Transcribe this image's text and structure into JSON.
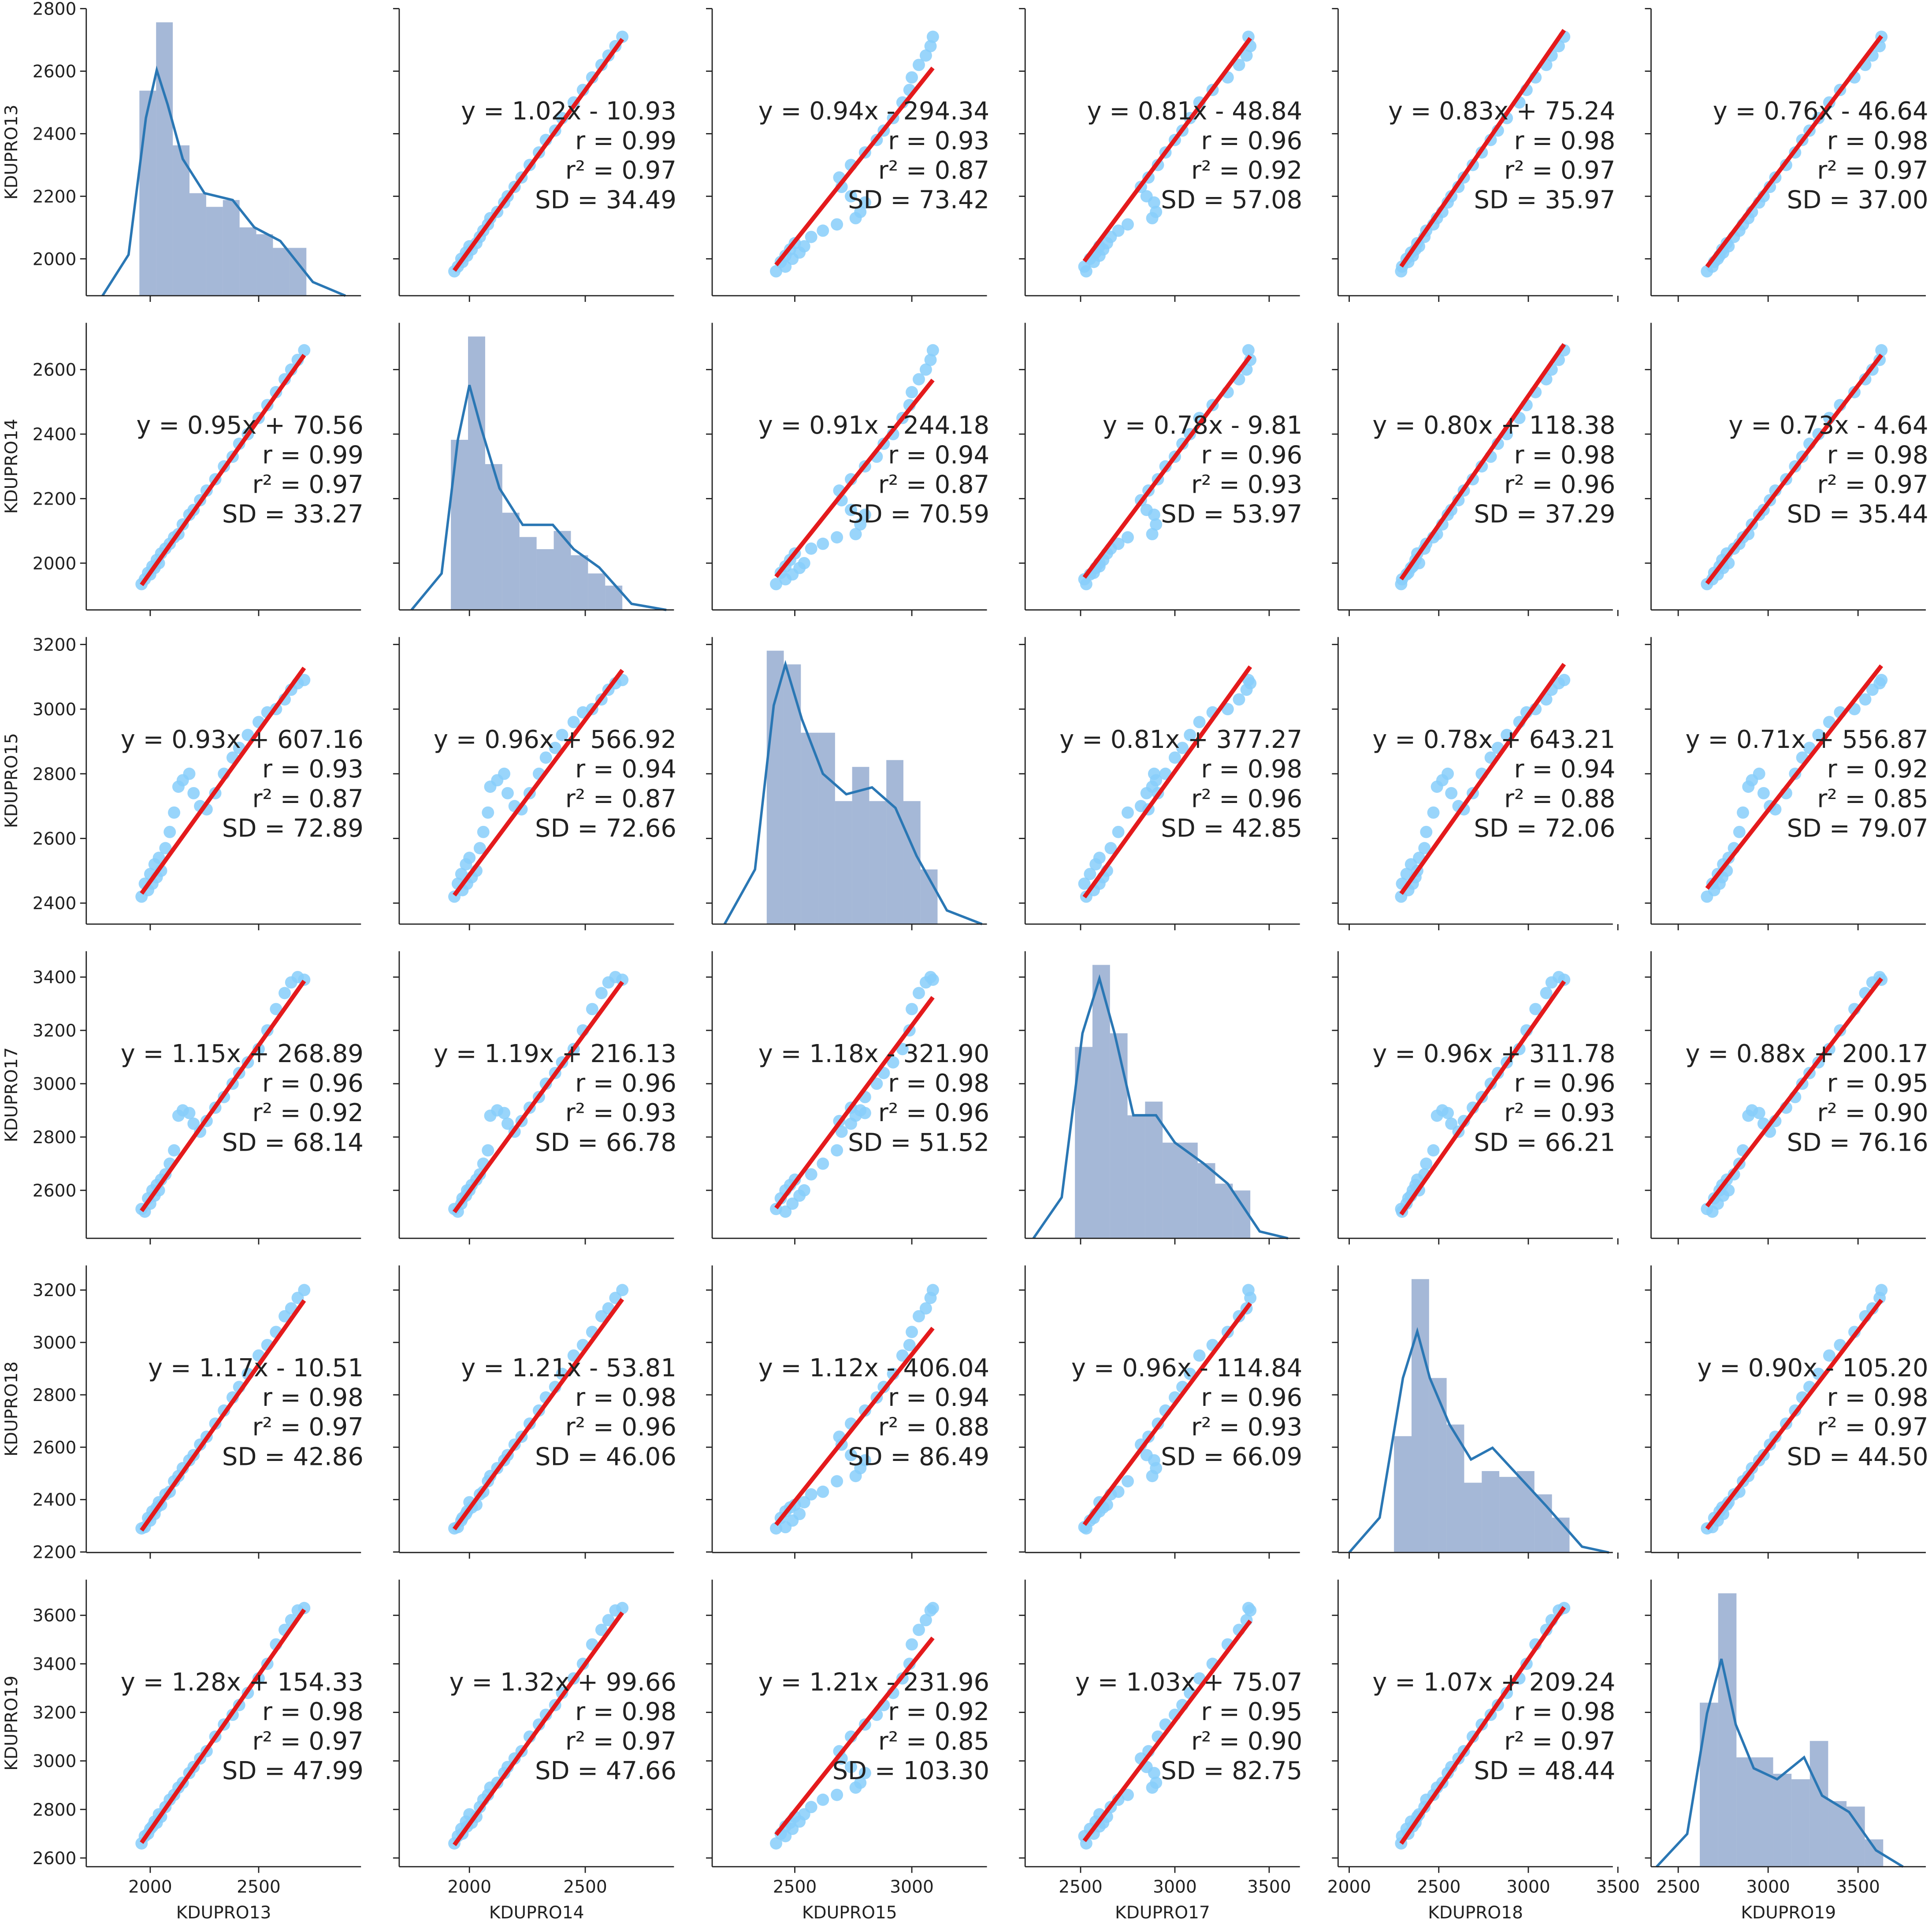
{
  "chart_data": {
    "type": "scatter-matrix",
    "point_color": "#87cefa",
    "fit_color": "#e41a1c",
    "hist_color": "#4c72b0",
    "kde_color": "#2a77b4",
    "variables": [
      {
        "name": "KDUPRO13",
        "xlim": [
          1705,
          2972
        ],
        "xticks": [
          2000,
          2500
        ],
        "ylim": [
          1882,
          2800
        ],
        "yticks": [
          2000,
          2200,
          2400,
          2600,
          2800
        ],
        "hist": {
          "bins": [
            1950,
            2027,
            2104,
            2181,
            2258,
            2335,
            2412,
            2489,
            2566,
            2643,
            2720
          ],
          "values": [
            30,
            40,
            22,
            15,
            13,
            14,
            10,
            9,
            7,
            7
          ]
        },
        "kde": {
          "x": [
            1780,
            1900,
            1980,
            2030,
            2080,
            2150,
            2250,
            2380,
            2480,
            2600,
            2750,
            2900
          ],
          "y": [
            0,
            6,
            26,
            33,
            28,
            20,
            15,
            14,
            10,
            8,
            2,
            0
          ]
        }
      },
      {
        "name": "KDUPRO14",
        "xlim": [
          1697,
          2883
        ],
        "xticks": [
          2000,
          2500
        ],
        "ylim": [
          1855,
          2745
        ],
        "yticks": [
          2000,
          2200,
          2400,
          2600
        ],
        "hist": {
          "bins": [
            1920,
            1994,
            2068,
            2142,
            2216,
            2290,
            2364,
            2438,
            2512,
            2586,
            2660
          ],
          "values": [
            28,
            45,
            24,
            16,
            12,
            10,
            13,
            9,
            6,
            4
          ]
        },
        "kde": {
          "x": [
            1750,
            1880,
            1950,
            2000,
            2050,
            2130,
            2230,
            2360,
            2450,
            2560,
            2700,
            2850
          ],
          "y": [
            0,
            6,
            28,
            37,
            30,
            20,
            14,
            14,
            10,
            7,
            1,
            0
          ]
        }
      },
      {
        "name": "KDUPRO15",
        "xlim": [
          2147,
          3321
        ],
        "xticks": [
          2500,
          3000
        ],
        "ylim": [
          2335,
          3223
        ],
        "yticks": [
          2400,
          2600,
          2800,
          3000,
          3200
        ],
        "hist": {
          "bins": [
            2380,
            2453,
            2526,
            2599,
            2672,
            2745,
            2818,
            2891,
            2964,
            3037,
            3110
          ],
          "values": [
            40,
            38,
            28,
            28,
            18,
            23,
            18,
            24,
            18,
            8
          ]
        },
        "kde": {
          "x": [
            2200,
            2330,
            2410,
            2460,
            2530,
            2620,
            2720,
            2830,
            2930,
            3020,
            3150,
            3300
          ],
          "y": [
            0,
            8,
            32,
            38,
            30,
            22,
            19,
            20,
            17,
            10,
            2,
            0
          ]
        }
      },
      {
        "name": "KDUPRO17",
        "xlim": [
          2206,
          3663
        ],
        "xticks": [
          2500,
          3000,
          3500
        ],
        "ylim": [
          2420,
          3497
        ],
        "yticks": [
          2600,
          2800,
          3000,
          3200,
          3400
        ],
        "hist": {
          "bins": [
            2470,
            2563,
            2656,
            2749,
            2842,
            2935,
            3028,
            3121,
            3214,
            3307,
            3400
          ],
          "values": [
            28,
            40,
            30,
            18,
            20,
            14,
            14,
            11,
            8,
            7
          ]
        },
        "kde": {
          "x": [
            2250,
            2400,
            2510,
            2600,
            2680,
            2780,
            2900,
            3000,
            3150,
            3280,
            3450,
            3600
          ],
          "y": [
            0,
            6,
            30,
            38,
            30,
            18,
            18,
            14,
            11,
            8,
            1,
            0
          ]
        }
      },
      {
        "name": "KDUPRO18",
        "xlim": [
          1938,
          3472
        ],
        "xticks": [
          2000,
          2500,
          3000,
          3500
        ],
        "ylim": [
          2198,
          3294
        ],
        "yticks": [
          2200,
          2400,
          2600,
          2800,
          3000,
          3200
        ],
        "hist": {
          "bins": [
            2250,
            2348,
            2446,
            2544,
            2642,
            2740,
            2838,
            2936,
            3034,
            3132,
            3230
          ],
          "values": [
            20,
            47,
            30,
            22,
            12,
            14,
            13,
            14,
            10,
            6
          ]
        },
        "kde": {
          "x": [
            2000,
            2170,
            2300,
            2380,
            2450,
            2560,
            2680,
            2800,
            2950,
            3100,
            3300,
            3450
          ],
          "y": [
            0,
            6,
            30,
            38,
            30,
            22,
            16,
            18,
            13,
            8,
            1,
            0
          ]
        }
      },
      {
        "name": "KDUPRO19",
        "xlim": [
          2349,
          3877
        ],
        "xticks": [
          2500,
          3000,
          3500
        ],
        "ylim": [
          2564,
          3747
        ],
        "yticks": [
          2600,
          2800,
          3000,
          3200,
          3400,
          3600
        ],
        "hist": {
          "bins": [
            2620,
            2722,
            2824,
            2926,
            3028,
            3130,
            3232,
            3334,
            3436,
            3538,
            3640
          ],
          "values": [
            30,
            50,
            20,
            20,
            17,
            16,
            23,
            12,
            11,
            5
          ]
        },
        "kde": {
          "x": [
            2380,
            2550,
            2660,
            2740,
            2820,
            2920,
            3050,
            3200,
            3300,
            3450,
            3600,
            3750
          ],
          "y": [
            0,
            6,
            28,
            38,
            26,
            18,
            16,
            20,
            13,
            10,
            3,
            0
          ]
        }
      }
    ],
    "observations": [
      [
        1960,
        1935,
        2420,
        2530,
        2290,
        2660
      ],
      [
        1975,
        1950,
        2460,
        2520,
        2295,
        2690
      ],
      [
        1990,
        1970,
        2440,
        2570,
        2330,
        2700
      ],
      [
        2000,
        1965,
        2490,
        2550,
        2320,
        2720
      ],
      [
        2010,
        1990,
        2460,
        2600,
        2355,
        2730
      ],
      [
        2020,
        1985,
        2520,
        2580,
        2345,
        2750
      ],
      [
        2030,
        2010,
        2480,
        2620,
        2370,
        2745
      ],
      [
        2040,
        2000,
        2540,
        2600,
        2390,
        2780
      ],
      [
        2050,
        2030,
        2500,
        2640,
        2380,
        2770
      ],
      [
        2070,
        2045,
        2570,
        2660,
        2420,
        2810
      ],
      [
        2090,
        2060,
        2620,
        2700,
        2430,
        2840
      ],
      [
        2110,
        2080,
        2680,
        2750,
        2470,
        2860
      ],
      [
        2130,
        2090,
        2760,
        2880,
        2490,
        2890
      ],
      [
        2150,
        2120,
        2780,
        2900,
        2520,
        2910
      ],
      [
        2180,
        2150,
        2800,
        2890,
        2550,
        2950
      ],
      [
        2200,
        2165,
        2740,
        2850,
        2570,
        2975
      ],
      [
        2230,
        2195,
        2700,
        2820,
        2610,
        3010
      ],
      [
        2260,
        2225,
        2690,
        2860,
        2640,
        3040
      ],
      [
        2300,
        2260,
        2740,
        2910,
        2690,
        3100
      ],
      [
        2340,
        2300,
        2800,
        2950,
        2740,
        3150
      ],
      [
        2380,
        2330,
        2850,
        3000,
        2790,
        3190
      ],
      [
        2410,
        2370,
        2880,
        3040,
        2830,
        3230
      ],
      [
        2450,
        2400,
        2920,
        3080,
        2880,
        3280
      ],
      [
        2500,
        2450,
        2960,
        3130,
        2950,
        3340
      ],
      [
        2540,
        2490,
        2990,
        3200,
        2990,
        3400
      ],
      [
        2580,
        2530,
        3000,
        3280,
        3040,
        3480
      ],
      [
        2620,
        2570,
        3030,
        3340,
        3100,
        3540
      ],
      [
        2650,
        2600,
        3060,
        3380,
        3130,
        3580
      ],
      [
        2680,
        2630,
        3080,
        3400,
        3170,
        3620
      ],
      [
        2710,
        2660,
        3090,
        3390,
        3200,
        3630
      ]
    ],
    "fits": [
      [
        null,
        {
          "fit": {
            "slope": 1.02,
            "intercept": -10.93
          },
          "annotation": [
            "y = 1.02x - 10.93",
            "r = 0.99",
            "r² = 0.97",
            "SD = 34.49"
          ]
        },
        {
          "fit": {
            "slope": 0.94,
            "intercept": -294.34
          },
          "annotation": [
            "y = 0.94x - 294.34",
            "r = 0.93",
            "r² = 0.87",
            "SD = 73.42"
          ]
        },
        {
          "fit": {
            "slope": 0.81,
            "intercept": -48.84
          },
          "annotation": [
            "y = 0.81x - 48.84",
            "r = 0.96",
            "r² = 0.92",
            "SD = 57.08"
          ]
        },
        {
          "fit": {
            "slope": 0.83,
            "intercept": 75.24
          },
          "annotation": [
            "y = 0.83x + 75.24",
            "r = 0.98",
            "r² = 0.97",
            "SD = 35.97"
          ]
        },
        {
          "fit": {
            "slope": 0.76,
            "intercept": -46.64
          },
          "annotation": [
            "y = 0.76x - 46.64",
            "r = 0.98",
            "r² = 0.97",
            "SD = 37.00"
          ]
        }
      ],
      [
        {
          "fit": {
            "slope": 0.95,
            "intercept": 70.56
          },
          "annotation": [
            "y = 0.95x + 70.56",
            "r = 0.99",
            "r² = 0.97",
            "SD = 33.27"
          ]
        },
        null,
        {
          "fit": {
            "slope": 0.91,
            "intercept": -244.18
          },
          "annotation": [
            "y = 0.91x - 244.18",
            "r = 0.94",
            "r² = 0.87",
            "SD = 70.59"
          ]
        },
        {
          "fit": {
            "slope": 0.78,
            "intercept": -9.81
          },
          "annotation": [
            "y = 0.78x - 9.81",
            "r = 0.96",
            "r² = 0.93",
            "SD = 53.97"
          ]
        },
        {
          "fit": {
            "slope": 0.8,
            "intercept": 118.38
          },
          "annotation": [
            "y = 0.80x + 118.38",
            "r = 0.98",
            "r² = 0.96",
            "SD = 37.29"
          ]
        },
        {
          "fit": {
            "slope": 0.73,
            "intercept": -4.64
          },
          "annotation": [
            "y = 0.73x - 4.64",
            "r = 0.98",
            "r² = 0.97",
            "SD = 35.44"
          ]
        }
      ],
      [
        {
          "fit": {
            "slope": 0.93,
            "intercept": 607.16
          },
          "annotation": [
            "y = 0.93x + 607.16",
            "r = 0.93",
            "r² = 0.87",
            "SD = 72.89"
          ]
        },
        {
          "fit": {
            "slope": 0.96,
            "intercept": 566.92
          },
          "annotation": [
            "y = 0.96x + 566.92",
            "r = 0.94",
            "r² = 0.87",
            "SD = 72.66"
          ]
        },
        null,
        {
          "fit": {
            "slope": 0.81,
            "intercept": 377.27
          },
          "annotation": [
            "y = 0.81x + 377.27",
            "r = 0.98",
            "r² = 0.96",
            "SD = 42.85"
          ]
        },
        {
          "fit": {
            "slope": 0.78,
            "intercept": 643.21
          },
          "annotation": [
            "y = 0.78x + 643.21",
            "r = 0.94",
            "r² = 0.88",
            "SD = 72.06"
          ]
        },
        {
          "fit": {
            "slope": 0.71,
            "intercept": 556.87
          },
          "annotation": [
            "y = 0.71x + 556.87",
            "r = 0.92",
            "r² = 0.85",
            "SD = 79.07"
          ]
        }
      ],
      [
        {
          "fit": {
            "slope": 1.15,
            "intercept": 268.89
          },
          "annotation": [
            "y = 1.15x + 268.89",
            "r = 0.96",
            "r² = 0.92",
            "SD = 68.14"
          ]
        },
        {
          "fit": {
            "slope": 1.19,
            "intercept": 216.13
          },
          "annotation": [
            "y = 1.19x + 216.13",
            "r = 0.96",
            "r² = 0.93",
            "SD = 66.78"
          ]
        },
        {
          "fit": {
            "slope": 1.18,
            "intercept": -321.9
          },
          "annotation": [
            "y = 1.18x - 321.90",
            "r = 0.98",
            "r² = 0.96",
            "SD = 51.52"
          ]
        },
        null,
        {
          "fit": {
            "slope": 0.96,
            "intercept": 311.78
          },
          "annotation": [
            "y = 0.96x + 311.78",
            "r = 0.96",
            "r² = 0.93",
            "SD = 66.21"
          ]
        },
        {
          "fit": {
            "slope": 0.88,
            "intercept": 200.17
          },
          "annotation": [
            "y = 0.88x + 200.17",
            "r = 0.95",
            "r² = 0.90",
            "SD = 76.16"
          ]
        }
      ],
      [
        {
          "fit": {
            "slope": 1.17,
            "intercept": -10.51
          },
          "annotation": [
            "y = 1.17x - 10.51",
            "r = 0.98",
            "r² = 0.97",
            "SD = 42.86"
          ]
        },
        {
          "fit": {
            "slope": 1.21,
            "intercept": -53.81
          },
          "annotation": [
            "y = 1.21x - 53.81",
            "r = 0.98",
            "r² = 0.96",
            "SD = 46.06"
          ]
        },
        {
          "fit": {
            "slope": 1.12,
            "intercept": -406.04
          },
          "annotation": [
            "y = 1.12x - 406.04",
            "r = 0.94",
            "r² = 0.88",
            "SD = 86.49"
          ]
        },
        {
          "fit": {
            "slope": 0.96,
            "intercept": -114.84
          },
          "annotation": [
            "y = 0.96x - 114.84",
            "r = 0.96",
            "r² = 0.93",
            "SD = 66.09"
          ]
        },
        null,
        {
          "fit": {
            "slope": 0.9,
            "intercept": -105.2
          },
          "annotation": [
            "y = 0.90x - 105.20",
            "r = 0.98",
            "r² = 0.97",
            "SD = 44.50"
          ]
        }
      ],
      [
        {
          "fit": {
            "slope": 1.28,
            "intercept": 154.33
          },
          "annotation": [
            "y = 1.28x + 154.33",
            "r = 0.98",
            "r² = 0.97",
            "SD = 47.99"
          ]
        },
        {
          "fit": {
            "slope": 1.32,
            "intercept": 99.66
          },
          "annotation": [
            "y = 1.32x + 99.66",
            "r = 0.98",
            "r² = 0.97",
            "SD = 47.66"
          ]
        },
        {
          "fit": {
            "slope": 1.21,
            "intercept": -231.96
          },
          "annotation": [
            "y = 1.21x - 231.96",
            "r = 0.92",
            "r² = 0.85",
            "SD = 103.30"
          ]
        },
        {
          "fit": {
            "slope": 1.03,
            "intercept": 75.07
          },
          "annotation": [
            "y = 1.03x + 75.07",
            "r = 0.95",
            "r² = 0.90",
            "SD = 82.75"
          ]
        },
        {
          "fit": {
            "slope": 1.07,
            "intercept": 209.24
          },
          "annotation": [
            "y = 1.07x + 209.24",
            "r = 0.98",
            "r² = 0.97",
            "SD = 48.44"
          ]
        },
        null
      ]
    ]
  }
}
